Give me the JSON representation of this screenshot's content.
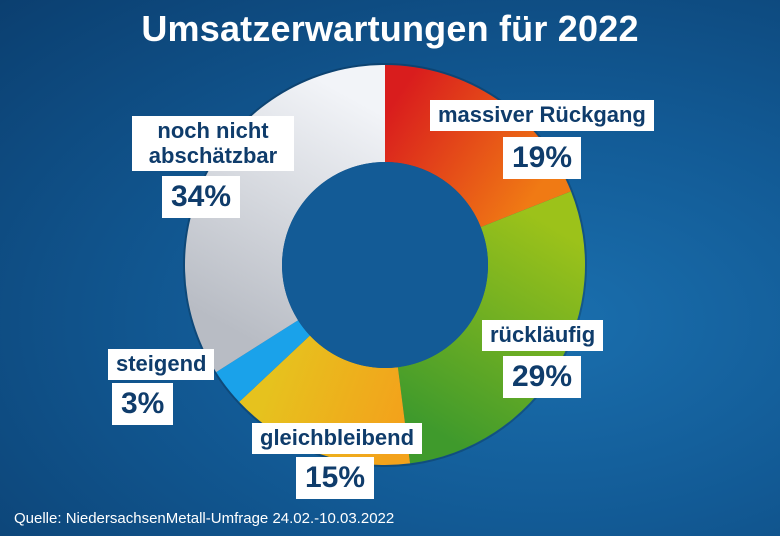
{
  "title": "Umsatzerwartungen für 2022",
  "source": "Quelle: NiedersachsenMetall-Umfrage 24.02.-10.03.2022",
  "chart_data": {
    "type": "pie",
    "donut": true,
    "title": "Umsatzerwartungen für 2022",
    "slices": [
      {
        "label": "massiver Rückgang",
        "value": 19,
        "value_label": "19%",
        "colors": [
          "#d91d1d",
          "#f07a14"
        ]
      },
      {
        "label": "rückläufig",
        "value": 29,
        "value_label": "29%",
        "colors": [
          "#9cc21a",
          "#3f9a2c"
        ]
      },
      {
        "label": "gleichbleibend",
        "value": 15,
        "value_label": "15%",
        "colors": [
          "#f3a21b",
          "#e6c21e"
        ]
      },
      {
        "label": "steigend",
        "value": 3,
        "value_label": "3%",
        "colors": [
          "#1aa2ea",
          "#1aa2ea"
        ]
      },
      {
        "label": "noch nicht abschätzbar",
        "value": 34,
        "value_label": "34%",
        "colors": [
          "#b8bcc4",
          "#f2f4f8"
        ]
      }
    ]
  }
}
